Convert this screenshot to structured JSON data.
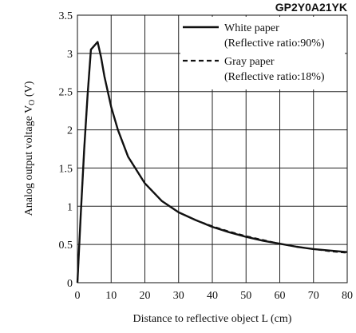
{
  "chart_data": {
    "type": "line",
    "title": "GP2Y0A21YK",
    "xlabel": "Distance to reflective object L (cm)",
    "ylabel": "Analog output voltage V",
    "ylabel_subscript": "O",
    "ylabel_unit": " (V)",
    "xlim": [
      0,
      80
    ],
    "ylim": [
      0,
      3.5
    ],
    "x_ticks": [
      0,
      10,
      20,
      30,
      40,
      50,
      60,
      70,
      80
    ],
    "y_ticks": [
      0,
      0.5,
      1,
      1.5,
      2,
      2.5,
      3,
      3.5
    ],
    "x_tick_labels": [
      "0",
      "10",
      "20",
      "30",
      "40",
      "50",
      "60",
      "70",
      "80"
    ],
    "y_tick_labels": [
      "0",
      "0.5",
      "1",
      "1.5",
      "2",
      "2.5",
      "3",
      "3.5"
    ],
    "grid": true,
    "legend_position": "top-right",
    "series": [
      {
        "name": "White paper",
        "note": "(Reflective ratio:90%)",
        "style": "solid",
        "x": [
          0,
          1,
          2,
          3,
          4,
          5,
          6,
          7,
          8,
          10,
          12,
          15,
          20,
          25,
          30,
          35,
          40,
          45,
          50,
          55,
          60,
          65,
          70,
          75,
          80
        ],
        "y": [
          0,
          0.9,
          1.75,
          2.45,
          3.05,
          3.1,
          3.15,
          2.95,
          2.7,
          2.3,
          2.0,
          1.65,
          1.3,
          1.07,
          0.92,
          0.82,
          0.73,
          0.66,
          0.6,
          0.55,
          0.51,
          0.47,
          0.44,
          0.42,
          0.4
        ]
      },
      {
        "name": "Gray paper",
        "note": "(Reflective ratio:18%)",
        "style": "dashed",
        "x": [
          0,
          1,
          2,
          3,
          4,
          5,
          6,
          7,
          8,
          10,
          12,
          15,
          20,
          25,
          30,
          35,
          40,
          45,
          50,
          55,
          60,
          65,
          70,
          75,
          80
        ],
        "y": [
          0,
          0.9,
          1.75,
          2.45,
          3.05,
          3.1,
          3.15,
          2.95,
          2.7,
          2.3,
          2.0,
          1.65,
          1.3,
          1.07,
          0.92,
          0.82,
          0.74,
          0.67,
          0.61,
          0.56,
          0.51,
          0.47,
          0.44,
          0.41,
          0.39
        ]
      }
    ]
  }
}
